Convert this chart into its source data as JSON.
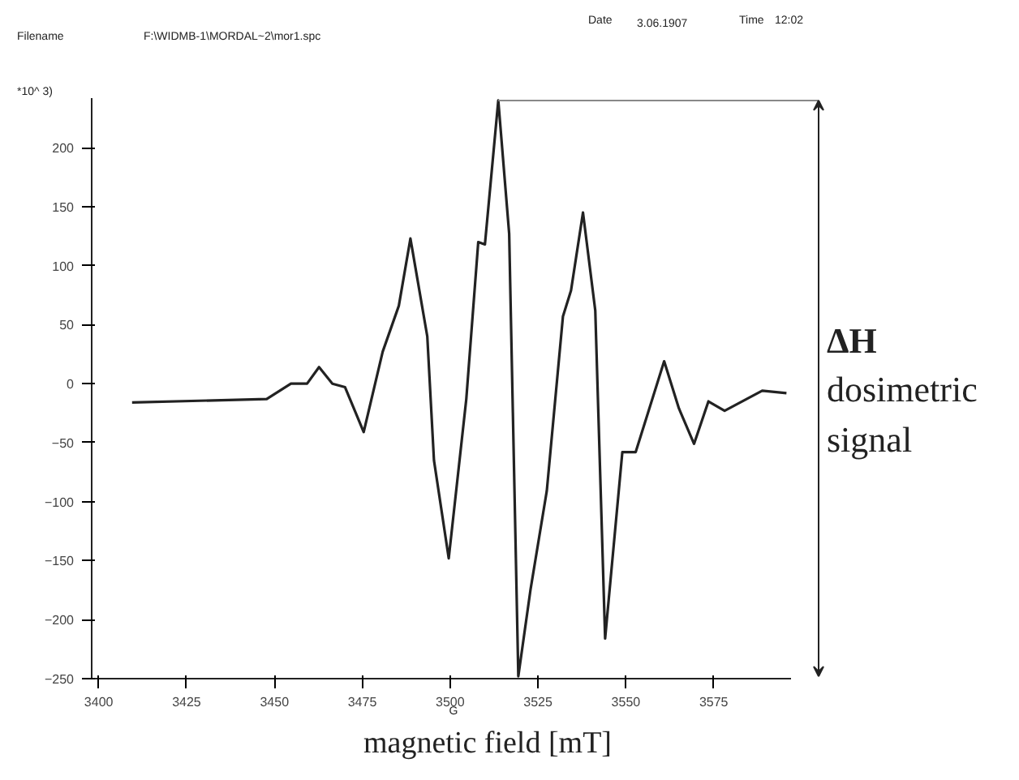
{
  "chart_data": {
    "type": "line",
    "xlabel": "magnetic field [mT]",
    "ylabel": "*10^ 3)",
    "x": [
      3409.5,
      3447.8,
      3454.7,
      3459.3,
      3462.7,
      3466.5,
      3470.1,
      3475.4,
      3480.8,
      3485.4,
      3488.7,
      3493.5,
      3495.4,
      3499.6,
      3504.6,
      3508.0,
      3509.9,
      3513.7,
      3516.8,
      3519.4,
      3522.9,
      3527.5,
      3532.1,
      3534.4,
      3537.8,
      3541.3,
      3544.1,
      3549.0,
      3552.8,
      3560.9,
      3565.1,
      3569.4,
      3573.5,
      3578.1,
      3588.8,
      3595.7
    ],
    "series": [
      {
        "color": "#222222",
        "values": [
          -16,
          -13,
          0,
          0,
          14,
          0,
          -3,
          -41,
          27,
          66,
          123,
          40,
          -65,
          -148,
          -13,
          120,
          118,
          240,
          127,
          -248,
          -174,
          -91,
          57,
          79,
          145,
          62,
          -216,
          -58,
          -58,
          19,
          -21,
          -51,
          -15,
          -23,
          -6,
          -8
        ]
      }
    ],
    "xlim": [
      3398,
      3597
    ],
    "ylim": [
      -250,
      242
    ],
    "xticks": [
      3400,
      3425,
      3450,
      3475,
      3500,
      3525,
      3550,
      3575
    ],
    "yticks": [
      -250,
      -200,
      -150,
      -100,
      -50,
      0,
      50,
      100,
      150,
      200
    ],
    "grid": false,
    "ref_lines": [
      {
        "axis": "y",
        "value": 240,
        "color": "#888888"
      }
    ],
    "marker": "none",
    "line_style": "solid",
    "annotations": [
      "Filename",
      "F:\\WIDMB-1\\MORDAL~2\\mor1.spc",
      "Date",
      "3.06.1907",
      "Time",
      "12:02",
      "G",
      "ΔH",
      "dosimetric",
      "signal"
    ]
  }
}
